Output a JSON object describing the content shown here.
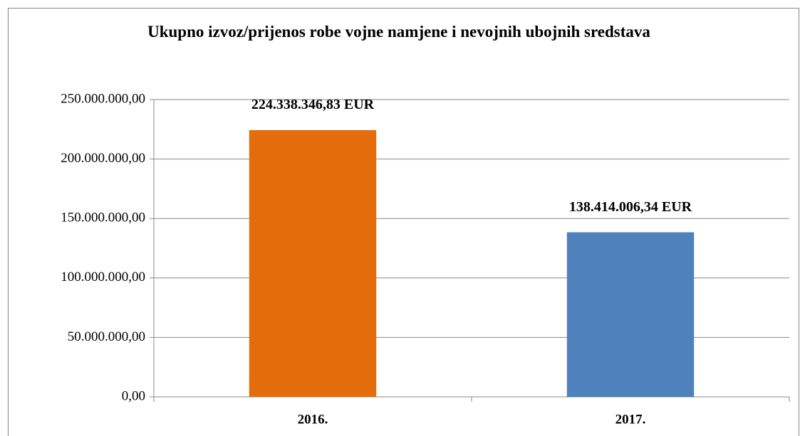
{
  "chart_data": {
    "type": "bar",
    "title": "Ukupno izvoz/prijenos robe vojne namjene i nevojnih ubojnih sredstava",
    "categories": [
      "2016.",
      "2017."
    ],
    "values": [
      224338346.83,
      138414006.34
    ],
    "value_labels": [
      "224.338.346,83 EUR",
      "138.414.006,34 EUR"
    ],
    "colors": [
      "#e46c0a",
      "#4f81bd"
    ],
    "ylim": [
      0,
      250000000
    ],
    "yticks": [
      {
        "value": 0,
        "label": "0,00"
      },
      {
        "value": 50000000,
        "label": "50.000.000,00"
      },
      {
        "value": 100000000,
        "label": "100.000.000,00"
      },
      {
        "value": 150000000,
        "label": "150.000.000,00"
      },
      {
        "value": 200000000,
        "label": "200.000.000,00"
      },
      {
        "value": 250000000,
        "label": "250.000.000,00"
      }
    ],
    "grid": true
  }
}
